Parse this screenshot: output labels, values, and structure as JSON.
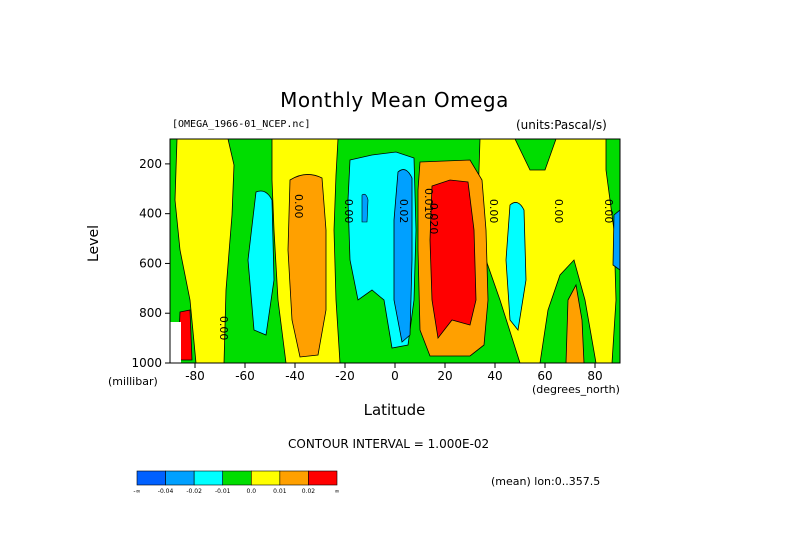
{
  "chart_data": {
    "type": "heatmap",
    "title": "Monthly Mean Omega",
    "source_label": "[OMEGA_1966-01_NCEP.nc]",
    "units_label": "(units:Pascal/s)",
    "xlabel": "Latitude",
    "x_unit": "(degrees_north)",
    "ylabel": "Level",
    "y_unit": "(millibar)",
    "xlim": [
      -90,
      90
    ],
    "ylim": [
      1000,
      100
    ],
    "x_ticks": [
      -80,
      -60,
      -40,
      -20,
      0,
      20,
      40,
      60,
      80
    ],
    "y_ticks": [
      200,
      400,
      600,
      800,
      1000
    ],
    "contour_interval_text": "CONTOUR INTERVAL = 1.000E-02",
    "mean_note": "(mean) lon:0..357.5",
    "contour_labels": [
      "0.00",
      "0.00",
      "0.00",
      "0.02",
      "0.010",
      "0.020",
      "0.00",
      "0.00",
      "0.00"
    ],
    "colorbar": {
      "levels": [
        "-0.04",
        "-0.02",
        "-0.01",
        "0.0",
        "0.01",
        "0.02"
      ],
      "colors": [
        "#0060ff",
        "#00a0ff",
        "#00ffff",
        "#00dd00",
        "#ffff00",
        "#ffa000",
        "#ff0000"
      ]
    }
  }
}
